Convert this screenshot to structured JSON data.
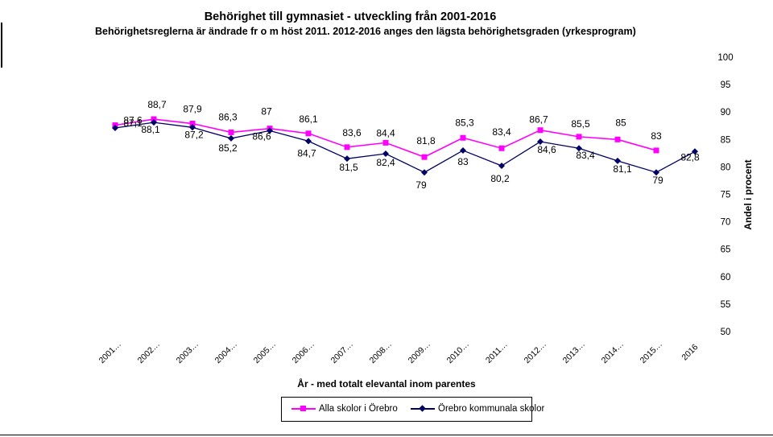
{
  "chart_data": {
    "type": "line",
    "title": "Behörighet till gymnasiet - utveckling från 2001-2016",
    "subtitle": "Behörighetsreglerna är ändrade fr o m höst 2011. 2012-2016 anges den lägsta behörighetsgraden (yrkesprogram)",
    "xlabel": "År - med totalt elevantal inom parentes",
    "ylabel": "Andel i procent",
    "categories": [
      "2001…",
      "2002…",
      "2003…",
      "2004…",
      "2005…",
      "2006…",
      "2007…",
      "2008…",
      "2009…",
      "2010…",
      "2011…",
      "2012…",
      "2013…",
      "2014…",
      "2015…",
      "2016"
    ],
    "y_axis": {
      "min": 50,
      "max": 100,
      "step": 5,
      "position": "right",
      "tick_labels": [
        "50",
        "55",
        "60",
        "65",
        "70",
        "75",
        "80",
        "85",
        "90",
        "95",
        "100"
      ]
    },
    "grid": false,
    "legend_position": "bottom",
    "series": [
      {
        "name": "Alla skolor i Örebro",
        "color": "#ff00ff",
        "marker": "square",
        "values": [
          87.6,
          88.7,
          87.9,
          86.3,
          87,
          86.1,
          83.6,
          84.4,
          81.8,
          85.3,
          83.4,
          86.7,
          85.5,
          85,
          83,
          null
        ],
        "labels": [
          "87,6",
          "88,7",
          "87,9",
          "86,3",
          "87",
          "86,1",
          "83,6",
          "84,4",
          "81,8",
          "85,3",
          "83,4",
          "86,7",
          "85,5",
          "85",
          "83",
          ""
        ]
      },
      {
        "name": "Örebro kommunala skolor",
        "color": "#000066",
        "marker": "diamond",
        "values": [
          87.1,
          88.1,
          87.2,
          85.2,
          86.6,
          84.7,
          81.5,
          82.4,
          79,
          83,
          80.2,
          84.6,
          83.4,
          81.1,
          79,
          82.8
        ],
        "labels": [
          "87,1",
          "88,1",
          "87,2",
          "85,2",
          "86,6",
          "84,7",
          "81,5",
          "82,4",
          "79",
          "83",
          "80,2",
          "84,6",
          "83,4",
          "81,1",
          "79",
          "82,8"
        ]
      }
    ]
  }
}
